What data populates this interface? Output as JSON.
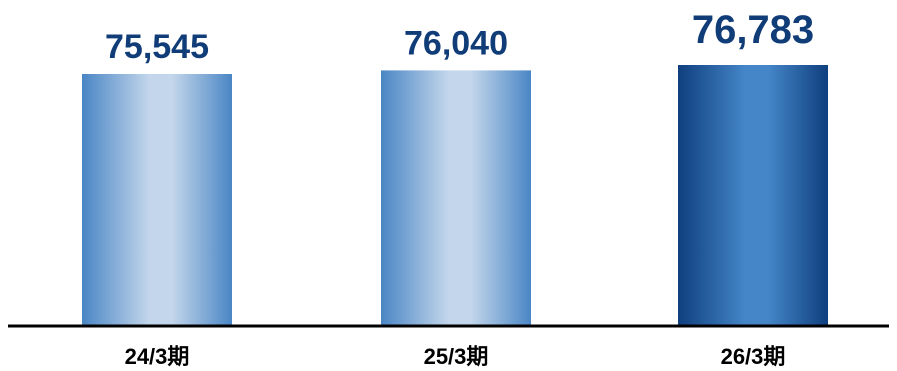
{
  "chart_data": {
    "type": "bar",
    "categories": [
      "24/3期",
      "25/3期",
      "26/3期"
    ],
    "values": [
      75545,
      76040,
      76783
    ],
    "data_labels": [
      "75,545",
      "76,040",
      "76,783"
    ],
    "highlight_index": 2,
    "title": "",
    "xlabel": "",
    "ylabel": "",
    "grid": false,
    "colors": {
      "bar_edge": "#4a86c5",
      "bar_center": "#c3d6eb",
      "highlight_edge": "#0f3f7e",
      "highlight_center": "#4486c8",
      "label_text": "#103c78",
      "axis_line": "#000000"
    }
  }
}
